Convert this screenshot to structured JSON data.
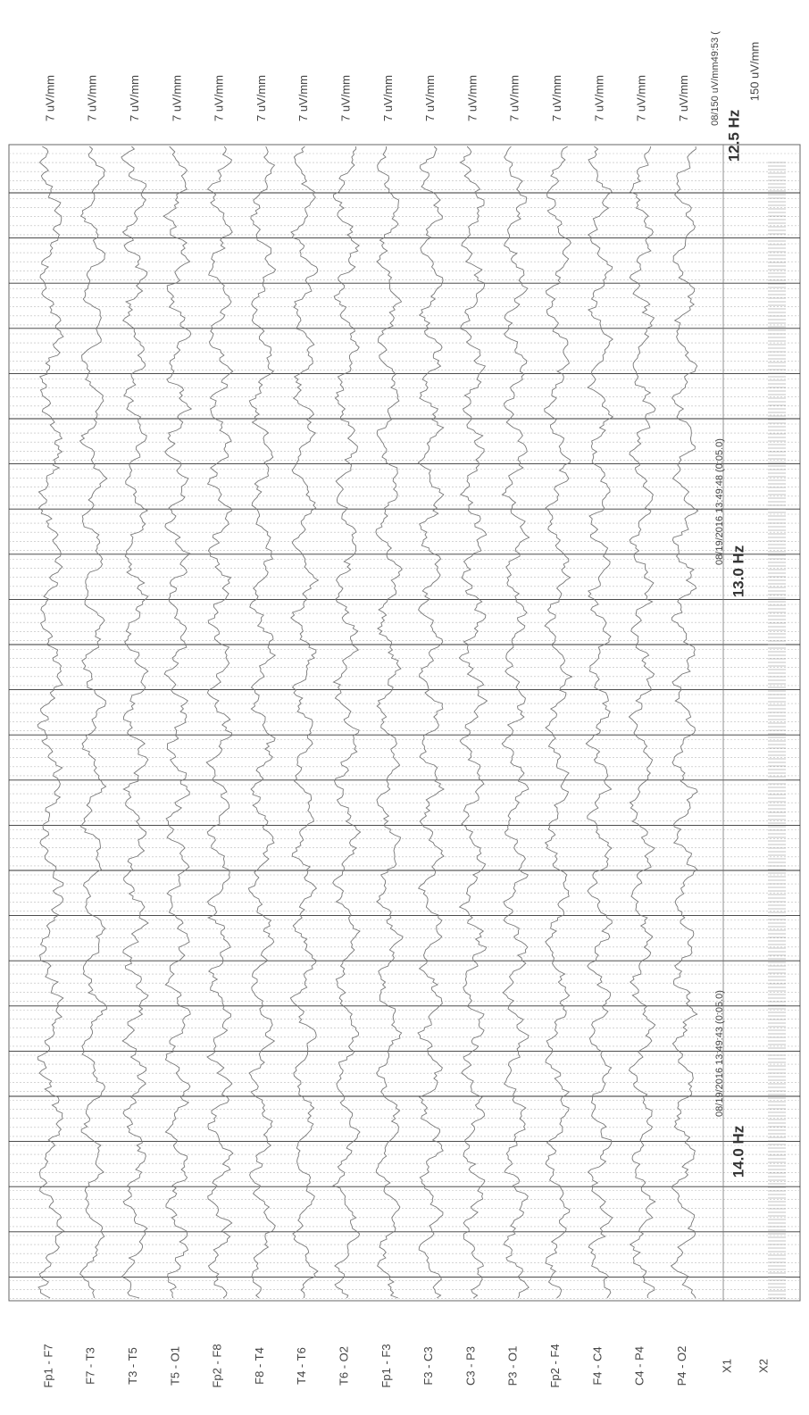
{
  "channels": [
    {
      "label": "Fp1 - F7",
      "scale": "7 uV/mm"
    },
    {
      "label": "F7 - T3",
      "scale": "7 uV/mm"
    },
    {
      "label": "T3 - T5",
      "scale": "7 uV/mm"
    },
    {
      "label": "T5 - O1",
      "scale": "7 uV/mm"
    },
    {
      "label": "Fp2 - F8",
      "scale": "7 uV/mm"
    },
    {
      "label": "F8 - T4",
      "scale": "7 uV/mm"
    },
    {
      "label": "T4 - T6",
      "scale": "7 uV/mm"
    },
    {
      "label": "T6 - O2",
      "scale": "7 uV/mm"
    },
    {
      "label": "Fp1 - F3",
      "scale": "7 uV/mm"
    },
    {
      "label": "F3 - C3",
      "scale": "7 uV/mm"
    },
    {
      "label": "C3 - P3",
      "scale": "7 uV/mm"
    },
    {
      "label": "P3 - O1",
      "scale": "7 uV/mm"
    },
    {
      "label": "Fp2 - F4",
      "scale": "7 uV/mm"
    },
    {
      "label": "F4 - C4",
      "scale": "7 uV/mm"
    },
    {
      "label": "C4 - P4",
      "scale": "7 uV/mm"
    },
    {
      "label": "P4 - O2",
      "scale": "7 uV/mm"
    }
  ],
  "aux_channels": [
    "X1",
    "X2"
  ],
  "header": {
    "overlap_text": "08/150 uV/mm49:53 (",
    "frequency": "12.5 Hz",
    "scale": "150 uV/mm"
  },
  "markers": [
    {
      "timestamp": "08/19/2016 13:49:48 (0:05.0)",
      "frequency": "13.0 Hz"
    },
    {
      "timestamp": "08/19/2016 13:49:43 (0:05.0)",
      "frequency": "14.0 Hz"
    }
  ]
}
